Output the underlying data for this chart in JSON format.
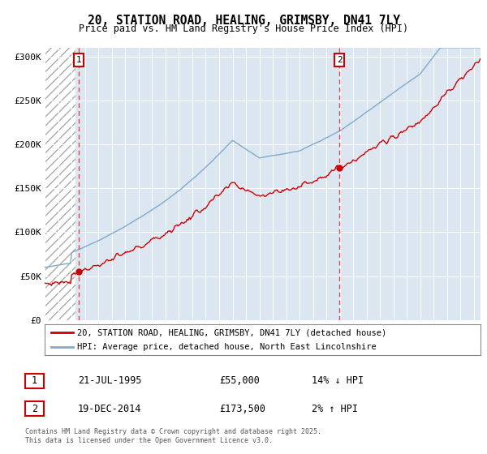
{
  "title": "20, STATION ROAD, HEALING, GRIMSBY, DN41 7LY",
  "subtitle": "Price paid vs. HM Land Registry's House Price Index (HPI)",
  "ylim": [
    0,
    310000
  ],
  "yticks": [
    0,
    50000,
    100000,
    150000,
    200000,
    250000,
    300000
  ],
  "ytick_labels": [
    "£0",
    "£50K",
    "£100K",
    "£150K",
    "£200K",
    "£250K",
    "£300K"
  ],
  "x_start_year": 1993,
  "x_end_year": 2025.5,
  "sale1_date": "21-JUL-1995",
  "sale1_price": 55000,
  "sale1_hpi_diff": "14% ↓ HPI",
  "sale1_x": 1995.54,
  "sale2_date": "19-DEC-2014",
  "sale2_price": 173500,
  "sale2_hpi_diff": "2% ↑ HPI",
  "sale2_x": 2014.96,
  "plot_bg": "#dce6f1",
  "red_line_color": "#cc0000",
  "blue_line_color": "#7faacc",
  "dashed_line_color": "#dd4444",
  "marker_color": "#cc0000",
  "legend_label1": "20, STATION ROAD, HEALING, GRIMSBY, DN41 7LY (detached house)",
  "legend_label2": "HPI: Average price, detached house, North East Lincolnshire",
  "footer": "Contains HM Land Registry data © Crown copyright and database right 2025.\nThis data is licensed under the Open Government Licence v3.0.",
  "hpi_seed": 10,
  "prop_seed": 77
}
